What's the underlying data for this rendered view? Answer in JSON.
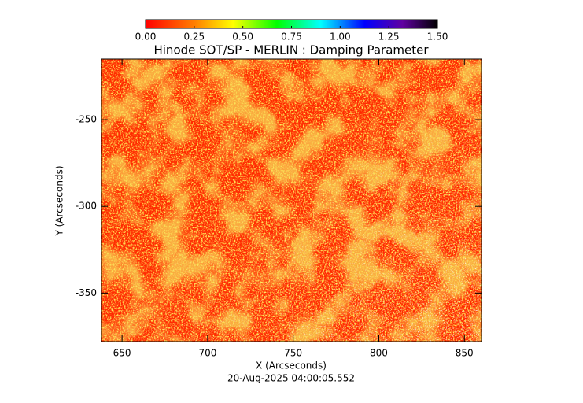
{
  "chart_data": {
    "type": "heatmap",
    "title": "Hinode SOT/SP - MERLIN : Damping Parameter",
    "x_label": "X (Arcseconds)",
    "y_label": "Y (Arcseconds)",
    "footer": "20-Aug-2025 04:00:05.552",
    "xlim": [
      638,
      860
    ],
    "xticks": [
      650,
      700,
      750,
      800,
      850
    ],
    "ylim": [
      -378,
      -215
    ],
    "yticks": [
      -350,
      -300,
      -250
    ],
    "colorbar": {
      "lim": [
        0,
        1.5
      ],
      "ticks": [
        {
          "value": 0,
          "label": "0.00"
        },
        {
          "value": 0.25,
          "label": "0.25"
        },
        {
          "value": 0.5,
          "label": "0.50"
        },
        {
          "value": 0.75,
          "label": "0.75"
        },
        {
          "value": 1,
          "label": "1.00"
        },
        {
          "value": 1.25,
          "label": "1.25"
        },
        {
          "value": 1.5,
          "label": "1.50"
        }
      ]
    }
  }
}
